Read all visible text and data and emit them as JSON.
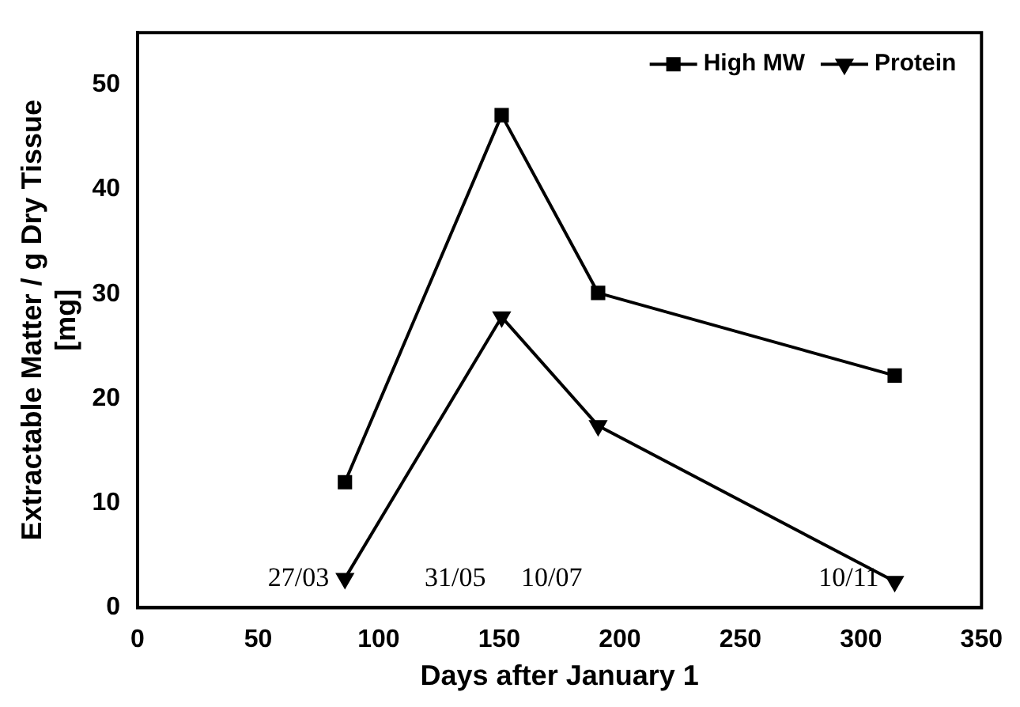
{
  "chart_data": {
    "type": "line",
    "xlabel": "Days after January 1",
    "ylabel": "Extractable Matter / g Dry Tissue\n[mg]",
    "series": [
      {
        "name": "High MW",
        "color": "#000000",
        "marker": "square",
        "x": [
          86,
          151,
          191,
          314
        ],
        "values": [
          12.0,
          47.1,
          30.1,
          22.2
        ]
      },
      {
        "name": "Protein",
        "color": "#000000",
        "marker": "triangle",
        "x": [
          86,
          151,
          191,
          314
        ],
        "values": [
          2.8,
          27.8,
          17.4,
          2.5
        ]
      }
    ],
    "xlim": [
      0,
      350
    ],
    "xticks": [
      0,
      50,
      100,
      150,
      200,
      250,
      300,
      350
    ],
    "ylim": [
      0,
      55
    ],
    "yticks": [
      0,
      10,
      20,
      30,
      40,
      50
    ],
    "grid": false,
    "legend": "top right",
    "line_style": "solid",
    "annotations": [
      "27/03",
      "31/05",
      "10/07",
      "10/11"
    ]
  }
}
